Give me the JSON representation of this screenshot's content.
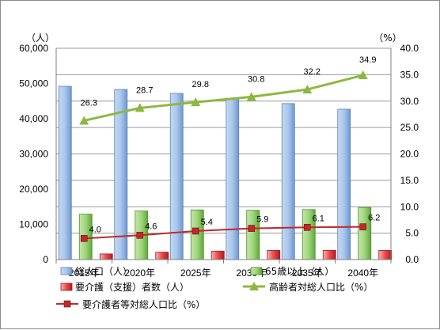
{
  "chart_data": {
    "type": "bar",
    "categories": [
      "2015年",
      "2020年",
      "2025年",
      "2030年",
      "2035年",
      "2040年"
    ],
    "left_axis": {
      "unit": "（人）",
      "ylim": [
        0,
        60000
      ],
      "ticks": [
        "0",
        "10,000",
        "20,000",
        "30,000",
        "40,000",
        "50,000",
        "60,000"
      ]
    },
    "right_axis": {
      "unit": "（%）",
      "ylim": [
        0,
        40
      ],
      "ticks": [
        "0.0",
        "5.0",
        "10.0",
        "15.0",
        "20.0",
        "25.0",
        "30.0",
        "35.0",
        "40.0"
      ]
    },
    "series": [
      {
        "name": "総人口（人）",
        "kind": "bar",
        "axis": "left",
        "color": "#8fb4e3",
        "values": [
          49200,
          48300,
          47200,
          45800,
          44300,
          42700
        ]
      },
      {
        "name": "65歳以上（人）",
        "kind": "bar",
        "axis": "left",
        "color": "#8ccc6a",
        "values": [
          12900,
          13800,
          14100,
          14000,
          14200,
          14800
        ]
      },
      {
        "name": "要介護（支援）者数（人）",
        "kind": "bar",
        "axis": "left",
        "color": "#e0303a",
        "values": [
          1600,
          2100,
          2400,
          2600,
          2600,
          2600
        ]
      },
      {
        "name": "高齢者対総人口比（%）",
        "kind": "line",
        "axis": "right",
        "color": "#8db83f",
        "values": [
          26.3,
          28.7,
          29.8,
          30.8,
          32.2,
          34.9
        ],
        "labels": [
          "26.3",
          "28.7",
          "29.8",
          "30.8",
          "32.2",
          "34.9"
        ]
      },
      {
        "name": "要介護者等対総人口比（%）",
        "kind": "line",
        "axis": "right",
        "color": "#c0282a",
        "values": [
          4.0,
          4.6,
          5.4,
          5.9,
          6.1,
          6.2
        ],
        "labels": [
          "4.0",
          "4.6",
          "5.4",
          "5.9",
          "6.1",
          "6.2"
        ]
      }
    ],
    "grid": true,
    "legend": "bottom"
  }
}
